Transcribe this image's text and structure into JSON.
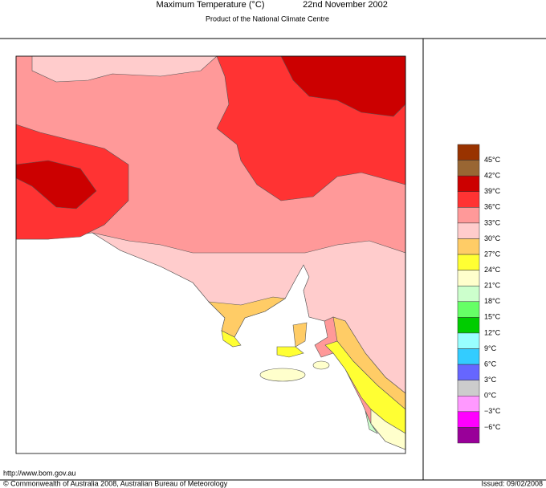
{
  "header": {
    "title": "Maximum Temperature (°C)",
    "date": "22nd November 2002",
    "subtitle": "Product of the National Climate Centre"
  },
  "legend": {
    "colors": [
      "#993300",
      "#996633",
      "#cc0000",
      "#ff3333",
      "#ff9999",
      "#ffcccc",
      "#ffcc66",
      "#ffff33",
      "#ffffcc",
      "#ccffcc",
      "#66ff66",
      "#00cc00",
      "#99ffff",
      "#33ccff",
      "#6666ff",
      "#cccccc",
      "#ff99ff",
      "#ff00ff",
      "#990099"
    ],
    "labels": [
      "45°C",
      "42°C",
      "39°C",
      "36°C",
      "33°C",
      "30°C",
      "27°C",
      "24°C",
      "21°C",
      "18°C",
      "15°C",
      "12°C",
      "9°C",
      "6°C",
      "3°C",
      "0°C",
      "−3°C",
      "−6°C"
    ]
  },
  "footer": {
    "url": "http://www.bom.gov.au",
    "copyright": "© Commonwealth of Australia 2008, Australian Bureau of Meteorology",
    "issued": "Issued: 09/02/2008"
  }
}
